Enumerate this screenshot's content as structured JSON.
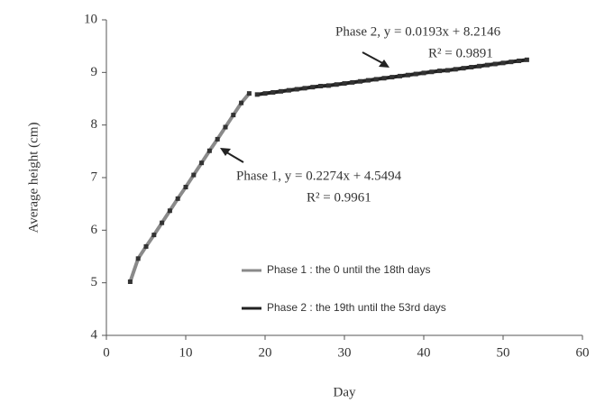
{
  "chart_data": {
    "type": "scatter",
    "x_label": "Day",
    "y_label": "Average height (cm)",
    "xlim": [
      0,
      60
    ],
    "xticks": [
      0,
      10,
      20,
      30,
      40,
      50,
      60
    ],
    "ylim": [
      4,
      10
    ],
    "yticks": [
      4,
      5,
      6,
      7,
      8,
      9,
      10
    ],
    "grid": false,
    "legend": "lower right",
    "annotations": [
      "Phase 2, y = 0.0193x + 8.2146",
      "R² = 0.9891",
      "Phase 1, y = 0.2274x + 4.5494",
      "R² = 0.9961"
    ],
    "series": [
      {
        "name": "Phase 1 : the 0 until the 18th days",
        "color": "#8a8a8a",
        "x": [
          3,
          4,
          5,
          6,
          7,
          8,
          9,
          10,
          11,
          12,
          13,
          14,
          15,
          16,
          17,
          18
        ],
        "values": [
          5.02,
          5.46,
          5.69,
          5.91,
          6.14,
          6.37,
          6.6,
          6.82,
          7.05,
          7.28,
          7.51,
          7.73,
          7.96,
          8.19,
          8.42,
          8.6
        ]
      },
      {
        "name": "Phase 2 : the 19th until the 53rd days",
        "color": "#222222",
        "x": [
          19,
          20,
          21,
          22,
          23,
          24,
          25,
          26,
          27,
          28,
          29,
          30,
          31,
          32,
          33,
          34,
          35,
          36,
          37,
          38,
          39,
          40,
          41,
          42,
          43,
          44,
          45,
          46,
          47,
          48,
          49,
          50,
          51,
          52,
          53
        ],
        "values": [
          8.58,
          8.6,
          8.62,
          8.64,
          8.66,
          8.68,
          8.7,
          8.72,
          8.74,
          8.75,
          8.77,
          8.79,
          8.81,
          8.83,
          8.85,
          8.87,
          8.89,
          8.91,
          8.93,
          8.95,
          8.97,
          8.99,
          9.01,
          9.03,
          9.04,
          9.06,
          9.08,
          9.1,
          9.12,
          9.14,
          9.16,
          9.18,
          9.2,
          9.22,
          9.24
        ]
      }
    ]
  }
}
